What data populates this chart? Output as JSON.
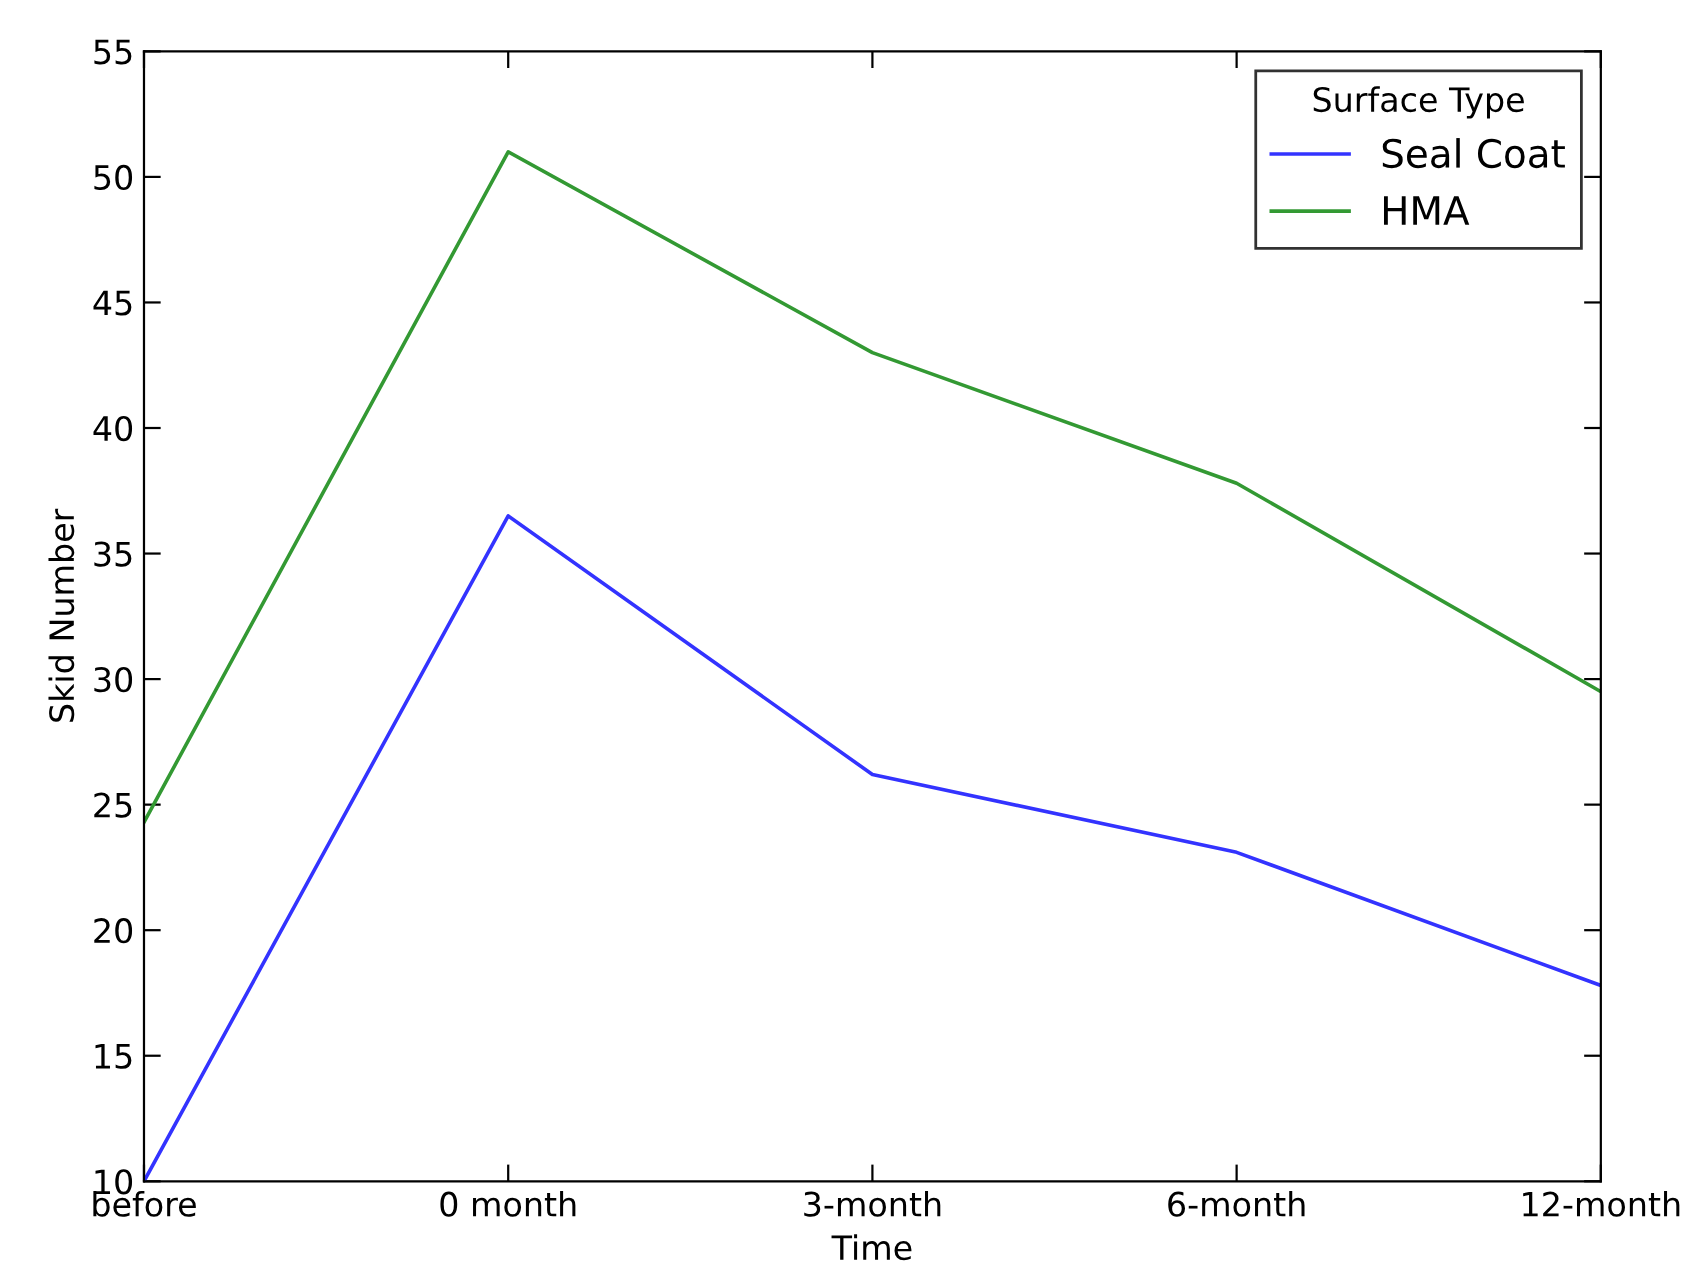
{
  "chart_data": {
    "type": "line",
    "xlabel": "Time",
    "ylabel": "Skid Number",
    "legend_title": "Surface Type",
    "categories": [
      "before",
      "0 month",
      "3-month",
      "6-month",
      "12-month"
    ],
    "series": [
      {
        "name": "Seal Coat",
        "color": "#3333ff",
        "values": [
          10,
          36.5,
          26.2,
          23.1,
          17.8
        ]
      },
      {
        "name": "HMA",
        "color": "#339933",
        "values": [
          24.3,
          51,
          43,
          37.8,
          29.5
        ]
      }
    ],
    "ylim": [
      10,
      55
    ],
    "yticks": [
      10,
      15,
      20,
      25,
      30,
      35,
      40,
      45,
      50,
      55
    ],
    "grid": false,
    "legend": "top right",
    "marker": "none",
    "line_style": "solid"
  }
}
